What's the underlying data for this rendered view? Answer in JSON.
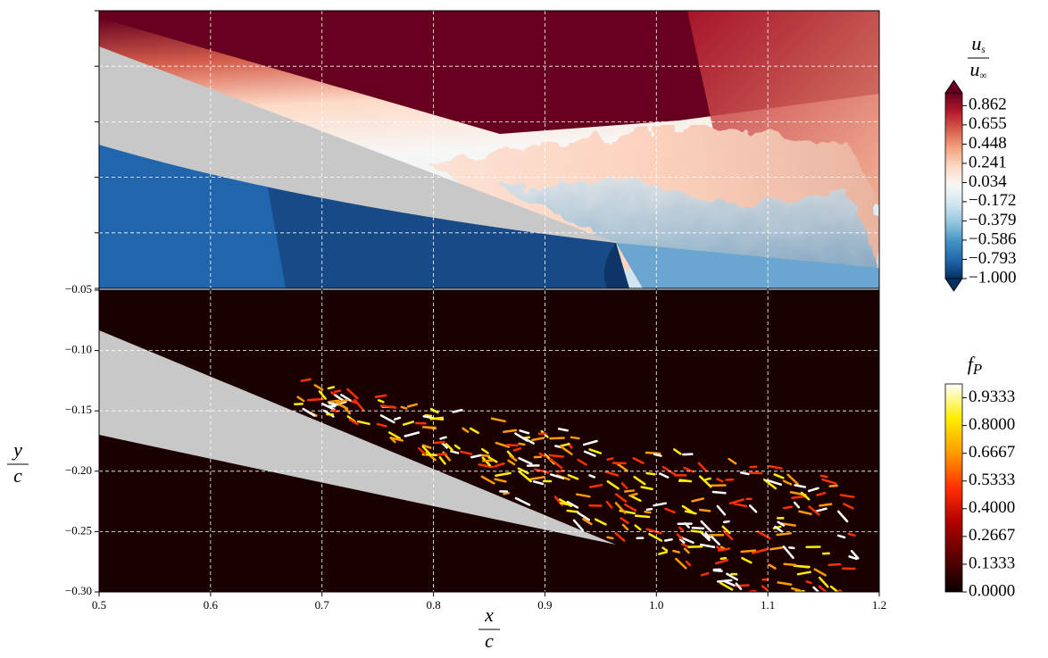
{
  "chart_data": [
    {
      "type": "contour",
      "xlim": [
        0.5,
        1.2
      ],
      "ylim": [
        -0.3,
        -0.05
      ],
      "xticks": [
        0.5,
        0.6,
        0.7,
        0.8,
        0.9,
        1,
        1.1,
        1.2
      ],
      "yticks": [
        -0.3,
        -0.25,
        -0.2,
        -0.15,
        -0.1,
        -0.05
      ],
      "tick_labels": false,
      "grid": true,
      "colorbar": {
        "label": {
          "numerator": {
            "base": "u",
            "sub": "s"
          },
          "denominator": {
            "base": "u",
            "sub": "∞"
          }
        },
        "lim": [
          -1,
          1
        ],
        "extend": "both",
        "colors": [
          "#053061",
          "#2166ac",
          "#4393c3",
          "#92c5de",
          "#d1e5f0",
          "#f7f7f7",
          "#fddbc7",
          "#f4a582",
          "#d6604d",
          "#b2182b",
          "#67001f"
        ],
        "ticks": [
          0.862,
          0.655,
          0.448,
          0.241,
          0.034,
          {
            "value": -0.172,
            "label": "−0.172"
          },
          {
            "value": -0.379,
            "label": "−0.379"
          },
          {
            "value": -0.586,
            "label": "−0.586"
          },
          {
            "value": -0.793,
            "label": "−0.793"
          },
          {
            "value": -1,
            "label": "−1.000"
          }
        ]
      }
    },
    {
      "type": "contour",
      "xlim": [
        0.5,
        1.2
      ],
      "ylim": [
        -0.3,
        -0.05
      ],
      "xticks": [
        0.5,
        0.6,
        0.7,
        0.8,
        0.9,
        {
          "value": 1,
          "label": "1.0"
        },
        1.1,
        1.2
      ],
      "yticks": [
        {
          "value": -0.05,
          "label": "−0.05"
        },
        {
          "value": -0.1,
          "label": "−0.10"
        },
        {
          "value": -0.15,
          "label": "−0.15"
        },
        {
          "value": -0.2,
          "label": "−0.20"
        },
        {
          "value": -0.25,
          "label": "−0.25"
        },
        {
          "value": -0.3,
          "label": "−0.30"
        }
      ],
      "tick_labels": true,
      "grid": true,
      "xlabel": {
        "numerator": "x",
        "denominator": "c"
      },
      "ylabel": {
        "numerator": "y",
        "denominator": "c"
      },
      "colorbar": {
        "label": {
          "base": "f",
          "sub": "P"
        },
        "lim": [
          0,
          1
        ],
        "extend": "neither",
        "colors": [
          "#0b0000",
          "#5a0000",
          "#b00000",
          "#ff3000",
          "#ff9a00",
          "#ffee00",
          "#ffffff"
        ],
        "ticks": [
          0.9333,
          {
            "value": 0.8,
            "label": "0.8000"
          },
          0.6667,
          0.5333,
          {
            "value": 0.4,
            "label": "0.4000"
          },
          0.2667,
          0.1333,
          {
            "value": 0,
            "label": "0.0000"
          }
        ]
      }
    }
  ]
}
